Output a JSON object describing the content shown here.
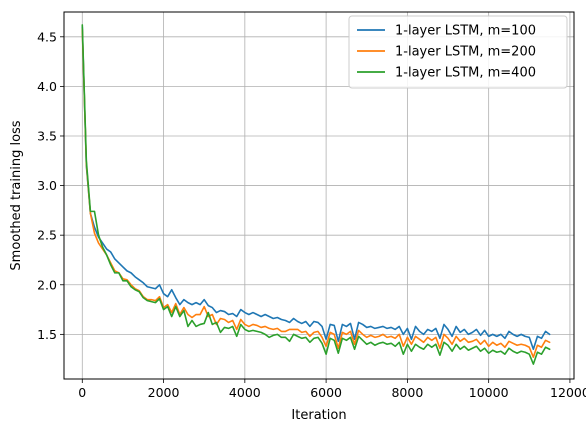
{
  "chart_data": {
    "type": "line",
    "title": "",
    "xlabel": "Iteration",
    "ylabel": "Smoothed training loss",
    "xlim": [
      -450,
      12100
    ],
    "ylim": [
      1.05,
      4.75
    ],
    "xticks": [
      0,
      2000,
      4000,
      6000,
      8000,
      10000,
      12000
    ],
    "yticks": [
      1.5,
      2.0,
      2.5,
      3.0,
      3.5,
      4.0,
      4.5
    ],
    "grid": true,
    "legend_position": "top-right",
    "series": [
      {
        "name": "1-layer LSTM, m=100",
        "color": "#1f77b4",
        "x": [
          0,
          100,
          200,
          300,
          400,
          500,
          600,
          700,
          800,
          900,
          1000,
          1100,
          1200,
          1300,
          1400,
          1500,
          1600,
          1700,
          1800,
          1900,
          2000,
          2100,
          2200,
          2300,
          2400,
          2500,
          2600,
          2700,
          2800,
          2900,
          3000,
          3100,
          3200,
          3300,
          3400,
          3500,
          3600,
          3700,
          3800,
          3900,
          4000,
          4100,
          4200,
          4300,
          4400,
          4500,
          4600,
          4700,
          4800,
          4900,
          5000,
          5100,
          5200,
          5300,
          5400,
          5500,
          5600,
          5700,
          5800,
          5900,
          6000,
          6100,
          6200,
          6300,
          6400,
          6500,
          6600,
          6700,
          6800,
          6900,
          7000,
          7100,
          7200,
          7300,
          7400,
          7500,
          7600,
          7700,
          7800,
          7900,
          8000,
          8100,
          8200,
          8300,
          8400,
          8500,
          8600,
          8700,
          8800,
          8900,
          9000,
          9100,
          9200,
          9300,
          9400,
          9500,
          9600,
          9700,
          9800,
          9900,
          10000,
          10100,
          10200,
          10300,
          10400,
          10500,
          10600,
          10700,
          10800,
          10900,
          11000,
          11100,
          11200,
          11300,
          11400,
          11500
        ],
        "y": [
          4.6,
          3.2,
          2.72,
          2.58,
          2.48,
          2.42,
          2.36,
          2.33,
          2.26,
          2.22,
          2.18,
          2.14,
          2.12,
          2.08,
          2.05,
          2.02,
          1.98,
          1.97,
          1.96,
          2.0,
          1.91,
          1.88,
          1.95,
          1.87,
          1.8,
          1.85,
          1.82,
          1.8,
          1.82,
          1.8,
          1.85,
          1.79,
          1.77,
          1.72,
          1.74,
          1.73,
          1.7,
          1.71,
          1.68,
          1.75,
          1.72,
          1.7,
          1.72,
          1.7,
          1.68,
          1.7,
          1.68,
          1.66,
          1.67,
          1.65,
          1.64,
          1.62,
          1.66,
          1.63,
          1.61,
          1.63,
          1.58,
          1.63,
          1.62,
          1.58,
          1.45,
          1.6,
          1.59,
          1.43,
          1.6,
          1.58,
          1.61,
          1.45,
          1.62,
          1.6,
          1.57,
          1.58,
          1.56,
          1.57,
          1.58,
          1.56,
          1.57,
          1.55,
          1.58,
          1.5,
          1.56,
          1.45,
          1.58,
          1.53,
          1.5,
          1.55,
          1.53,
          1.56,
          1.46,
          1.6,
          1.55,
          1.48,
          1.58,
          1.52,
          1.55,
          1.5,
          1.52,
          1.55,
          1.49,
          1.54,
          1.48,
          1.5,
          1.48,
          1.5,
          1.46,
          1.53,
          1.5,
          1.48,
          1.5,
          1.48,
          1.47,
          1.35,
          1.48,
          1.46,
          1.53,
          1.5
        ]
      },
      {
        "name": "1-layer LSTM, m=200",
        "color": "#ff7f0e",
        "x": [
          0,
          100,
          200,
          300,
          400,
          500,
          600,
          700,
          800,
          900,
          1000,
          1100,
          1200,
          1300,
          1400,
          1500,
          1600,
          1700,
          1800,
          1900,
          2000,
          2100,
          2200,
          2300,
          2400,
          2500,
          2600,
          2700,
          2800,
          2900,
          3000,
          3100,
          3200,
          3300,
          3400,
          3500,
          3600,
          3700,
          3800,
          3900,
          4000,
          4100,
          4200,
          4300,
          4400,
          4500,
          4600,
          4700,
          4800,
          4900,
          5000,
          5100,
          5200,
          5300,
          5400,
          5500,
          5600,
          5700,
          5800,
          5900,
          6000,
          6100,
          6200,
          6300,
          6400,
          6500,
          6600,
          6700,
          6800,
          6900,
          7000,
          7100,
          7200,
          7300,
          7400,
          7500,
          7600,
          7700,
          7800,
          7900,
          8000,
          8100,
          8200,
          8300,
          8400,
          8500,
          8600,
          8700,
          8800,
          8900,
          9000,
          9100,
          9200,
          9300,
          9400,
          9500,
          9600,
          9700,
          9800,
          9900,
          10000,
          10100,
          10200,
          10300,
          10400,
          10500,
          10600,
          10700,
          10800,
          10900,
          11000,
          11100,
          11200,
          11300,
          11400,
          11500
        ],
        "y": [
          4.58,
          3.22,
          2.72,
          2.52,
          2.42,
          2.36,
          2.3,
          2.22,
          2.14,
          2.12,
          2.06,
          2.05,
          2.0,
          1.96,
          1.94,
          1.88,
          1.85,
          1.85,
          1.84,
          1.88,
          1.77,
          1.8,
          1.72,
          1.81,
          1.7,
          1.77,
          1.7,
          1.67,
          1.7,
          1.7,
          1.78,
          1.68,
          1.7,
          1.6,
          1.66,
          1.65,
          1.62,
          1.64,
          1.55,
          1.65,
          1.6,
          1.58,
          1.6,
          1.59,
          1.57,
          1.58,
          1.56,
          1.55,
          1.56,
          1.53,
          1.53,
          1.55,
          1.55,
          1.55,
          1.52,
          1.53,
          1.48,
          1.52,
          1.53,
          1.47,
          1.38,
          1.52,
          1.5,
          1.36,
          1.52,
          1.5,
          1.53,
          1.4,
          1.54,
          1.5,
          1.47,
          1.49,
          1.47,
          1.48,
          1.5,
          1.47,
          1.48,
          1.46,
          1.5,
          1.38,
          1.47,
          1.4,
          1.48,
          1.45,
          1.42,
          1.47,
          1.44,
          1.47,
          1.36,
          1.5,
          1.46,
          1.4,
          1.48,
          1.43,
          1.46,
          1.42,
          1.43,
          1.45,
          1.4,
          1.44,
          1.38,
          1.42,
          1.39,
          1.41,
          1.37,
          1.43,
          1.41,
          1.39,
          1.4,
          1.39,
          1.37,
          1.27,
          1.39,
          1.37,
          1.44,
          1.42
        ]
      },
      {
        "name": "1-layer LSTM, m=400",
        "color": "#2ca02c",
        "x": [
          0,
          100,
          200,
          300,
          400,
          500,
          600,
          700,
          800,
          900,
          1000,
          1100,
          1200,
          1300,
          1400,
          1500,
          1600,
          1700,
          1800,
          1900,
          2000,
          2100,
          2200,
          2300,
          2400,
          2500,
          2600,
          2700,
          2800,
          2900,
          3000,
          3100,
          3200,
          3300,
          3400,
          3500,
          3600,
          3700,
          3800,
          3900,
          4000,
          4100,
          4200,
          4300,
          4400,
          4500,
          4600,
          4700,
          4800,
          4900,
          5000,
          5100,
          5200,
          5300,
          5400,
          5500,
          5600,
          5700,
          5800,
          5900,
          6000,
          6100,
          6200,
          6300,
          6400,
          6500,
          6600,
          6700,
          6800,
          6900,
          7000,
          7100,
          7200,
          7300,
          7400,
          7500,
          7600,
          7700,
          7800,
          7900,
          8000,
          8100,
          8200,
          8300,
          8400,
          8500,
          8600,
          8700,
          8800,
          8900,
          9000,
          9100,
          9200,
          9300,
          9400,
          9500,
          9600,
          9700,
          9800,
          9900,
          10000,
          10100,
          10200,
          10300,
          10400,
          10500,
          10600,
          10700,
          10800,
          10900,
          11000,
          11100,
          11200,
          11300,
          11400,
          11500
        ],
        "y": [
          4.62,
          3.25,
          2.74,
          2.74,
          2.5,
          2.38,
          2.3,
          2.2,
          2.12,
          2.12,
          2.04,
          2.04,
          1.98,
          1.95,
          1.93,
          1.87,
          1.84,
          1.83,
          1.82,
          1.86,
          1.75,
          1.78,
          1.68,
          1.78,
          1.68,
          1.74,
          1.58,
          1.64,
          1.58,
          1.6,
          1.61,
          1.72,
          1.6,
          1.62,
          1.52,
          1.57,
          1.56,
          1.58,
          1.48,
          1.6,
          1.55,
          1.53,
          1.54,
          1.53,
          1.52,
          1.5,
          1.47,
          1.49,
          1.5,
          1.47,
          1.47,
          1.43,
          1.5,
          1.48,
          1.46,
          1.47,
          1.42,
          1.46,
          1.47,
          1.41,
          1.3,
          1.46,
          1.44,
          1.31,
          1.46,
          1.44,
          1.47,
          1.35,
          1.48,
          1.44,
          1.4,
          1.42,
          1.39,
          1.41,
          1.42,
          1.4,
          1.41,
          1.38,
          1.42,
          1.3,
          1.4,
          1.33,
          1.4,
          1.37,
          1.35,
          1.4,
          1.37,
          1.4,
          1.29,
          1.42,
          1.39,
          1.33,
          1.4,
          1.35,
          1.38,
          1.34,
          1.36,
          1.38,
          1.33,
          1.36,
          1.31,
          1.34,
          1.32,
          1.33,
          1.3,
          1.36,
          1.33,
          1.31,
          1.33,
          1.32,
          1.3,
          1.2,
          1.32,
          1.3,
          1.37,
          1.35
        ]
      }
    ]
  }
}
